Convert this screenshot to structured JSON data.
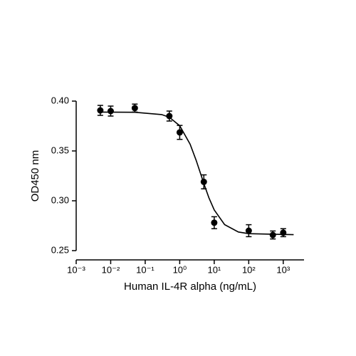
{
  "chart_data": {
    "type": "scatter",
    "x_label": "Human IL-4R alpha (ng/mL)",
    "y_label": "OD450 nm",
    "x": [
      0.005,
      0.01,
      0.05,
      0.5,
      1,
      5,
      10,
      100,
      500,
      1000
    ],
    "values": [
      0.3907,
      0.39,
      0.393,
      0.385,
      0.3686,
      0.319,
      0.278,
      0.27,
      0.2657,
      0.268
    ],
    "errors": [
      0.005,
      0.005,
      0.004,
      0.005,
      0.007,
      0.007,
      0.006,
      0.006,
      0.004,
      0.004
    ],
    "fit": {
      "x": [
        0.005,
        0.05,
        0.3,
        0.5,
        1,
        2,
        3,
        4,
        5,
        7,
        10,
        20,
        50,
        100,
        2000
      ],
      "values": [
        0.389,
        0.3888,
        0.3865,
        0.3838,
        0.3753,
        0.3568,
        0.3405,
        0.3275,
        0.3173,
        0.3031,
        0.2908,
        0.2761,
        0.2687,
        0.267,
        0.266
      ]
    },
    "color": "#000000",
    "xscale": "log",
    "xlim": [
      0.001,
      4000
    ],
    "ylim": [
      0.25,
      0.4
    ],
    "xticks": [
      {
        "value": 0.001,
        "label": "10⁻³"
      },
      {
        "value": 0.01,
        "label": "10⁻²"
      },
      {
        "value": 0.1,
        "label": "10⁻¹"
      },
      {
        "value": 1,
        "label": "10⁰"
      },
      {
        "value": 10,
        "label": "10¹"
      },
      {
        "value": 100,
        "label": "10²"
      },
      {
        "value": 1000,
        "label": "10³"
      }
    ],
    "yticks": [
      {
        "value": 0.25,
        "label": "0.25"
      },
      {
        "value": 0.3,
        "label": "0.30"
      },
      {
        "value": 0.35,
        "label": "0.35"
      },
      {
        "value": 0.4,
        "label": "0.40"
      }
    ]
  }
}
